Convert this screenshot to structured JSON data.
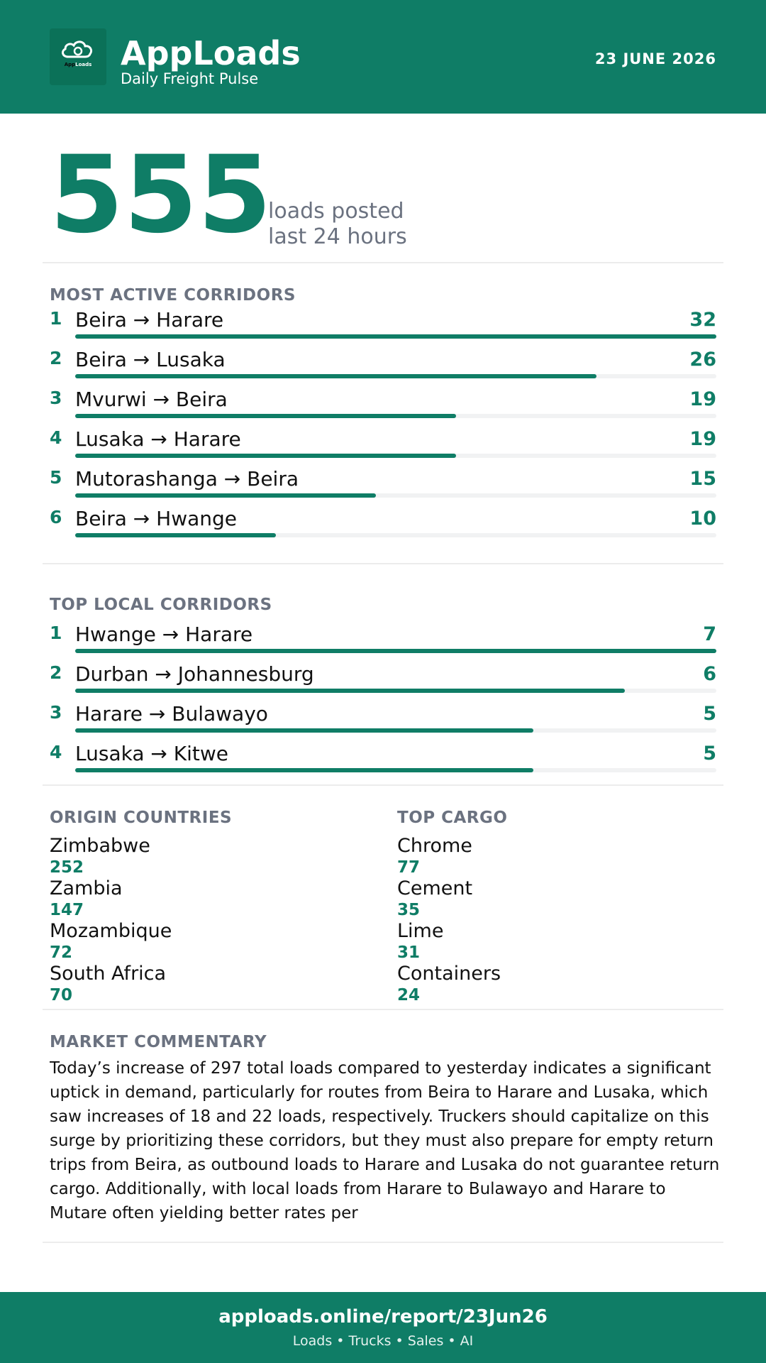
{
  "header": {
    "logo_text_a": "App",
    "logo_text_b": "Loads",
    "brand": "AppLoads",
    "tagline": "Daily Freight Pulse",
    "date": "23 JUNE 2026"
  },
  "hero": {
    "loads": "555",
    "label_line1": "loads posted",
    "label_line2": "last 24 hours"
  },
  "active": {
    "title": "MOST ACTIVE CORRIDORS",
    "items": [
      {
        "rank": "1",
        "route": "Beira → Harare",
        "count": "32",
        "value": 32
      },
      {
        "rank": "2",
        "route": "Beira → Lusaka",
        "count": "26",
        "value": 26
      },
      {
        "rank": "3",
        "route": "Mvurwi → Beira",
        "count": "19",
        "value": 19
      },
      {
        "rank": "4",
        "route": "Lusaka → Harare",
        "count": "19",
        "value": 19
      },
      {
        "rank": "5",
        "route": "Mutorashanga → Beira",
        "count": "15",
        "value": 15
      },
      {
        "rank": "6",
        "route": "Beira → Hwange",
        "count": "10",
        "value": 10
      }
    ]
  },
  "local": {
    "title": "TOP LOCAL CORRIDORS",
    "items": [
      {
        "rank": "1",
        "route": "Hwange → Harare",
        "count": "7",
        "value": 7
      },
      {
        "rank": "2",
        "route": "Durban → Johannesburg",
        "count": "6",
        "value": 6
      },
      {
        "rank": "3",
        "route": "Harare → Bulawayo",
        "count": "5",
        "value": 5
      },
      {
        "rank": "4",
        "route": "Lusaka → Kitwe",
        "count": "5",
        "value": 5
      }
    ]
  },
  "origins": {
    "title": "ORIGIN COUNTRIES",
    "items": [
      {
        "name": "Zimbabwe",
        "value": "252"
      },
      {
        "name": "Zambia",
        "value": "147"
      },
      {
        "name": "Mozambique",
        "value": "72"
      },
      {
        "name": "South Africa",
        "value": "70"
      }
    ]
  },
  "cargo": {
    "title": "TOP CARGO",
    "items": [
      {
        "name": "Chrome",
        "value": "77"
      },
      {
        "name": "Cement",
        "value": "35"
      },
      {
        "name": "Lime",
        "value": "31"
      },
      {
        "name": "Containers",
        "value": "24"
      }
    ]
  },
  "commentary": {
    "title": "MARKET COMMENTARY",
    "text": "Today’s increase of 297 total loads compared to yesterday indicates a significant uptick in demand, particularly for routes from Beira to Harare and Lusaka, which saw increases of 18 and 22 loads, respectively. Truckers should capitalize on this surge by prioritizing these corridors, but they must also prepare for empty return trips from Beira, as outbound loads to Harare and Lusaka do not guarantee return cargo. Additionally, with local loads from Harare to Bulawayo and Harare to Mutare often yielding better rates per"
  },
  "footer": {
    "url": "apploads.online/report/23Jun26",
    "links": "Loads • Trucks • Sales • AI"
  },
  "colors": {
    "brand_green": "#0f7d66",
    "muted_text": "#6b7280",
    "track": "#f1f2f3"
  }
}
